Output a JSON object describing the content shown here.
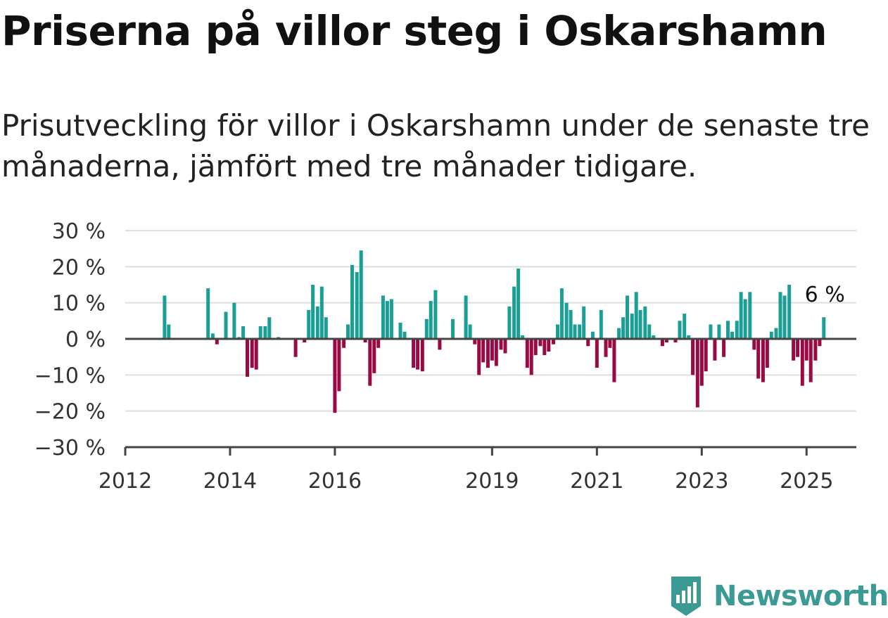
{
  "header": {
    "title": "Priserna på villor steg i Oskarshamn",
    "subtitle": "Prisutveckling för villor i Oskarshamn under de senaste tre månaderna, jämfört med tre månader tidigare."
  },
  "logo": {
    "text": "Newsworthy",
    "icon": "newsworthy-logo-icon",
    "color": "#3b9a94"
  },
  "colors": {
    "positive": "#1a9e95",
    "negative": "#990a44",
    "grid": "#dddddd",
    "axis": "#444444"
  },
  "chart_data": {
    "type": "bar",
    "x_unit": "year",
    "xlim": [
      2012.0,
      2025.95
    ],
    "ylim": [
      -30,
      30
    ],
    "y_ticks": [
      30,
      20,
      10,
      0,
      -10,
      -20,
      -30
    ],
    "y_tick_labels": [
      "30 %",
      "20 %",
      "10 %",
      "0 %",
      "−10 %",
      "−20 %",
      "−30 %"
    ],
    "x_ticks": [
      2012,
      2014,
      2016,
      2019,
      2021,
      2023,
      2025
    ],
    "x_tick_labels": [
      "2012",
      "2014",
      "2016",
      "2019",
      "2021",
      "2023",
      "2025"
    ],
    "grid": true,
    "end_label": "6 %",
    "points": [
      [
        2012.75,
        12
      ],
      [
        2012.83,
        4
      ],
      [
        2013.58,
        14
      ],
      [
        2013.67,
        1.5
      ],
      [
        2013.75,
        -1.5
      ],
      [
        2013.92,
        7.5
      ],
      [
        2014.08,
        10
      ],
      [
        2014.17,
        0.5
      ],
      [
        2014.25,
        3.5
      ],
      [
        2014.33,
        -10.5
      ],
      [
        2014.42,
        -8
      ],
      [
        2014.5,
        -8.5
      ],
      [
        2014.58,
        3.5
      ],
      [
        2014.67,
        3.5
      ],
      [
        2014.75,
        6
      ],
      [
        2014.92,
        0.5
      ],
      [
        2015.25,
        -5
      ],
      [
        2015.42,
        -1
      ],
      [
        2015.5,
        8
      ],
      [
        2015.58,
        15
      ],
      [
        2015.67,
        9
      ],
      [
        2015.75,
        14.5
      ],
      [
        2015.83,
        6
      ],
      [
        2016.0,
        -20.5
      ],
      [
        2016.08,
        -14.5
      ],
      [
        2016.17,
        -2.5
      ],
      [
        2016.25,
        4
      ],
      [
        2016.33,
        20.5
      ],
      [
        2016.42,
        18.5
      ],
      [
        2016.5,
        24.5
      ],
      [
        2016.58,
        -1
      ],
      [
        2016.67,
        -13
      ],
      [
        2016.75,
        -9.5
      ],
      [
        2016.83,
        -2.5
      ],
      [
        2016.92,
        12
      ],
      [
        2017.0,
        10.5
      ],
      [
        2017.08,
        11
      ],
      [
        2017.25,
        4.5
      ],
      [
        2017.33,
        2
      ],
      [
        2017.5,
        -8
      ],
      [
        2017.58,
        -8.5
      ],
      [
        2017.67,
        -9
      ],
      [
        2017.75,
        5.5
      ],
      [
        2017.83,
        10.5
      ],
      [
        2017.92,
        13.5
      ],
      [
        2018.0,
        -3
      ],
      [
        2018.25,
        5.5
      ],
      [
        2018.5,
        12
      ],
      [
        2018.58,
        4
      ],
      [
        2018.67,
        -1.5
      ],
      [
        2018.75,
        -10
      ],
      [
        2018.83,
        -6.5
      ],
      [
        2018.92,
        -8
      ],
      [
        2019.0,
        -6
      ],
      [
        2019.08,
        -7.5
      ],
      [
        2019.17,
        -3
      ],
      [
        2019.25,
        -4
      ],
      [
        2019.33,
        9
      ],
      [
        2019.42,
        14.5
      ],
      [
        2019.5,
        19.5
      ],
      [
        2019.58,
        1
      ],
      [
        2019.67,
        -8
      ],
      [
        2019.75,
        -10
      ],
      [
        2019.83,
        -4.5
      ],
      [
        2019.92,
        -2
      ],
      [
        2020.0,
        -4.5
      ],
      [
        2020.08,
        -3.5
      ],
      [
        2020.17,
        -1.5
      ],
      [
        2020.25,
        4
      ],
      [
        2020.33,
        14
      ],
      [
        2020.42,
        10
      ],
      [
        2020.5,
        8
      ],
      [
        2020.58,
        4
      ],
      [
        2020.67,
        4
      ],
      [
        2020.75,
        9
      ],
      [
        2020.83,
        -2
      ],
      [
        2020.92,
        2
      ],
      [
        2021.0,
        -8
      ],
      [
        2021.08,
        8
      ],
      [
        2021.17,
        -5
      ],
      [
        2021.25,
        -2.5
      ],
      [
        2021.33,
        -12
      ],
      [
        2021.42,
        3
      ],
      [
        2021.5,
        6
      ],
      [
        2021.58,
        12
      ],
      [
        2021.67,
        7
      ],
      [
        2021.75,
        13
      ],
      [
        2021.83,
        8
      ],
      [
        2021.92,
        9
      ],
      [
        2022.0,
        4
      ],
      [
        2022.08,
        1
      ],
      [
        2022.25,
        -2
      ],
      [
        2022.33,
        -1
      ],
      [
        2022.5,
        -1
      ],
      [
        2022.58,
        5
      ],
      [
        2022.67,
        7
      ],
      [
        2022.75,
        1
      ],
      [
        2022.83,
        -10
      ],
      [
        2022.92,
        -19
      ],
      [
        2023.0,
        -13
      ],
      [
        2023.08,
        -9
      ],
      [
        2023.17,
        4
      ],
      [
        2023.25,
        -6
      ],
      [
        2023.33,
        4
      ],
      [
        2023.42,
        -5
      ],
      [
        2023.5,
        5
      ],
      [
        2023.58,
        2
      ],
      [
        2023.67,
        5
      ],
      [
        2023.75,
        13
      ],
      [
        2023.83,
        11
      ],
      [
        2023.92,
        13
      ],
      [
        2024.0,
        -3
      ],
      [
        2024.08,
        -11
      ],
      [
        2024.17,
        -12
      ],
      [
        2024.25,
        -8
      ],
      [
        2024.33,
        2
      ],
      [
        2024.42,
        3
      ],
      [
        2024.5,
        13
      ],
      [
        2024.58,
        12
      ],
      [
        2024.67,
        15
      ],
      [
        2024.75,
        -6
      ],
      [
        2024.83,
        -5
      ],
      [
        2024.92,
        -13
      ],
      [
        2025.0,
        -6
      ],
      [
        2025.08,
        -12
      ],
      [
        2025.17,
        -6
      ],
      [
        2025.25,
        -2
      ],
      [
        2025.33,
        6
      ]
    ]
  }
}
